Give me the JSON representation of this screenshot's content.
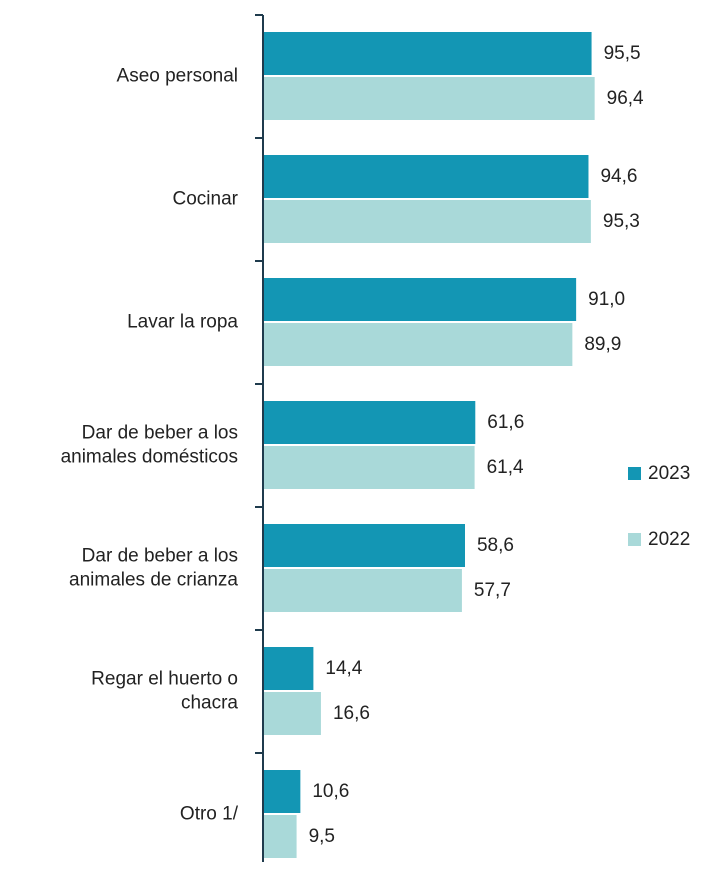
{
  "chart_data": {
    "type": "hbar",
    "categories": [
      "Aseo personal",
      "Cocinar",
      "Lavar la ropa",
      "Dar de beber a los animales domésticos",
      "Dar de beber a los animales de crianza",
      "Regar el huerto o chacra",
      "Otro 1/"
    ],
    "series": [
      {
        "name": "2023",
        "color": "#1396b4",
        "values": [
          95.5,
          94.6,
          91.0,
          61.6,
          58.6,
          14.4,
          10.6
        ],
        "value_labels": [
          "95,5",
          "94,6",
          "91,0",
          "61,6",
          "58,6",
          "14,4",
          "10,6"
        ]
      },
      {
        "name": "2022",
        "color": "#a9d9d9",
        "values": [
          96.4,
          95.3,
          89.9,
          61.4,
          57.7,
          16.6,
          9.5
        ],
        "value_labels": [
          "96,4",
          "95,3",
          "89,9",
          "61,4",
          "57,7",
          "16,6",
          "9,5"
        ]
      }
    ],
    "xlim": [
      0,
      100
    ],
    "legend": "right"
  }
}
